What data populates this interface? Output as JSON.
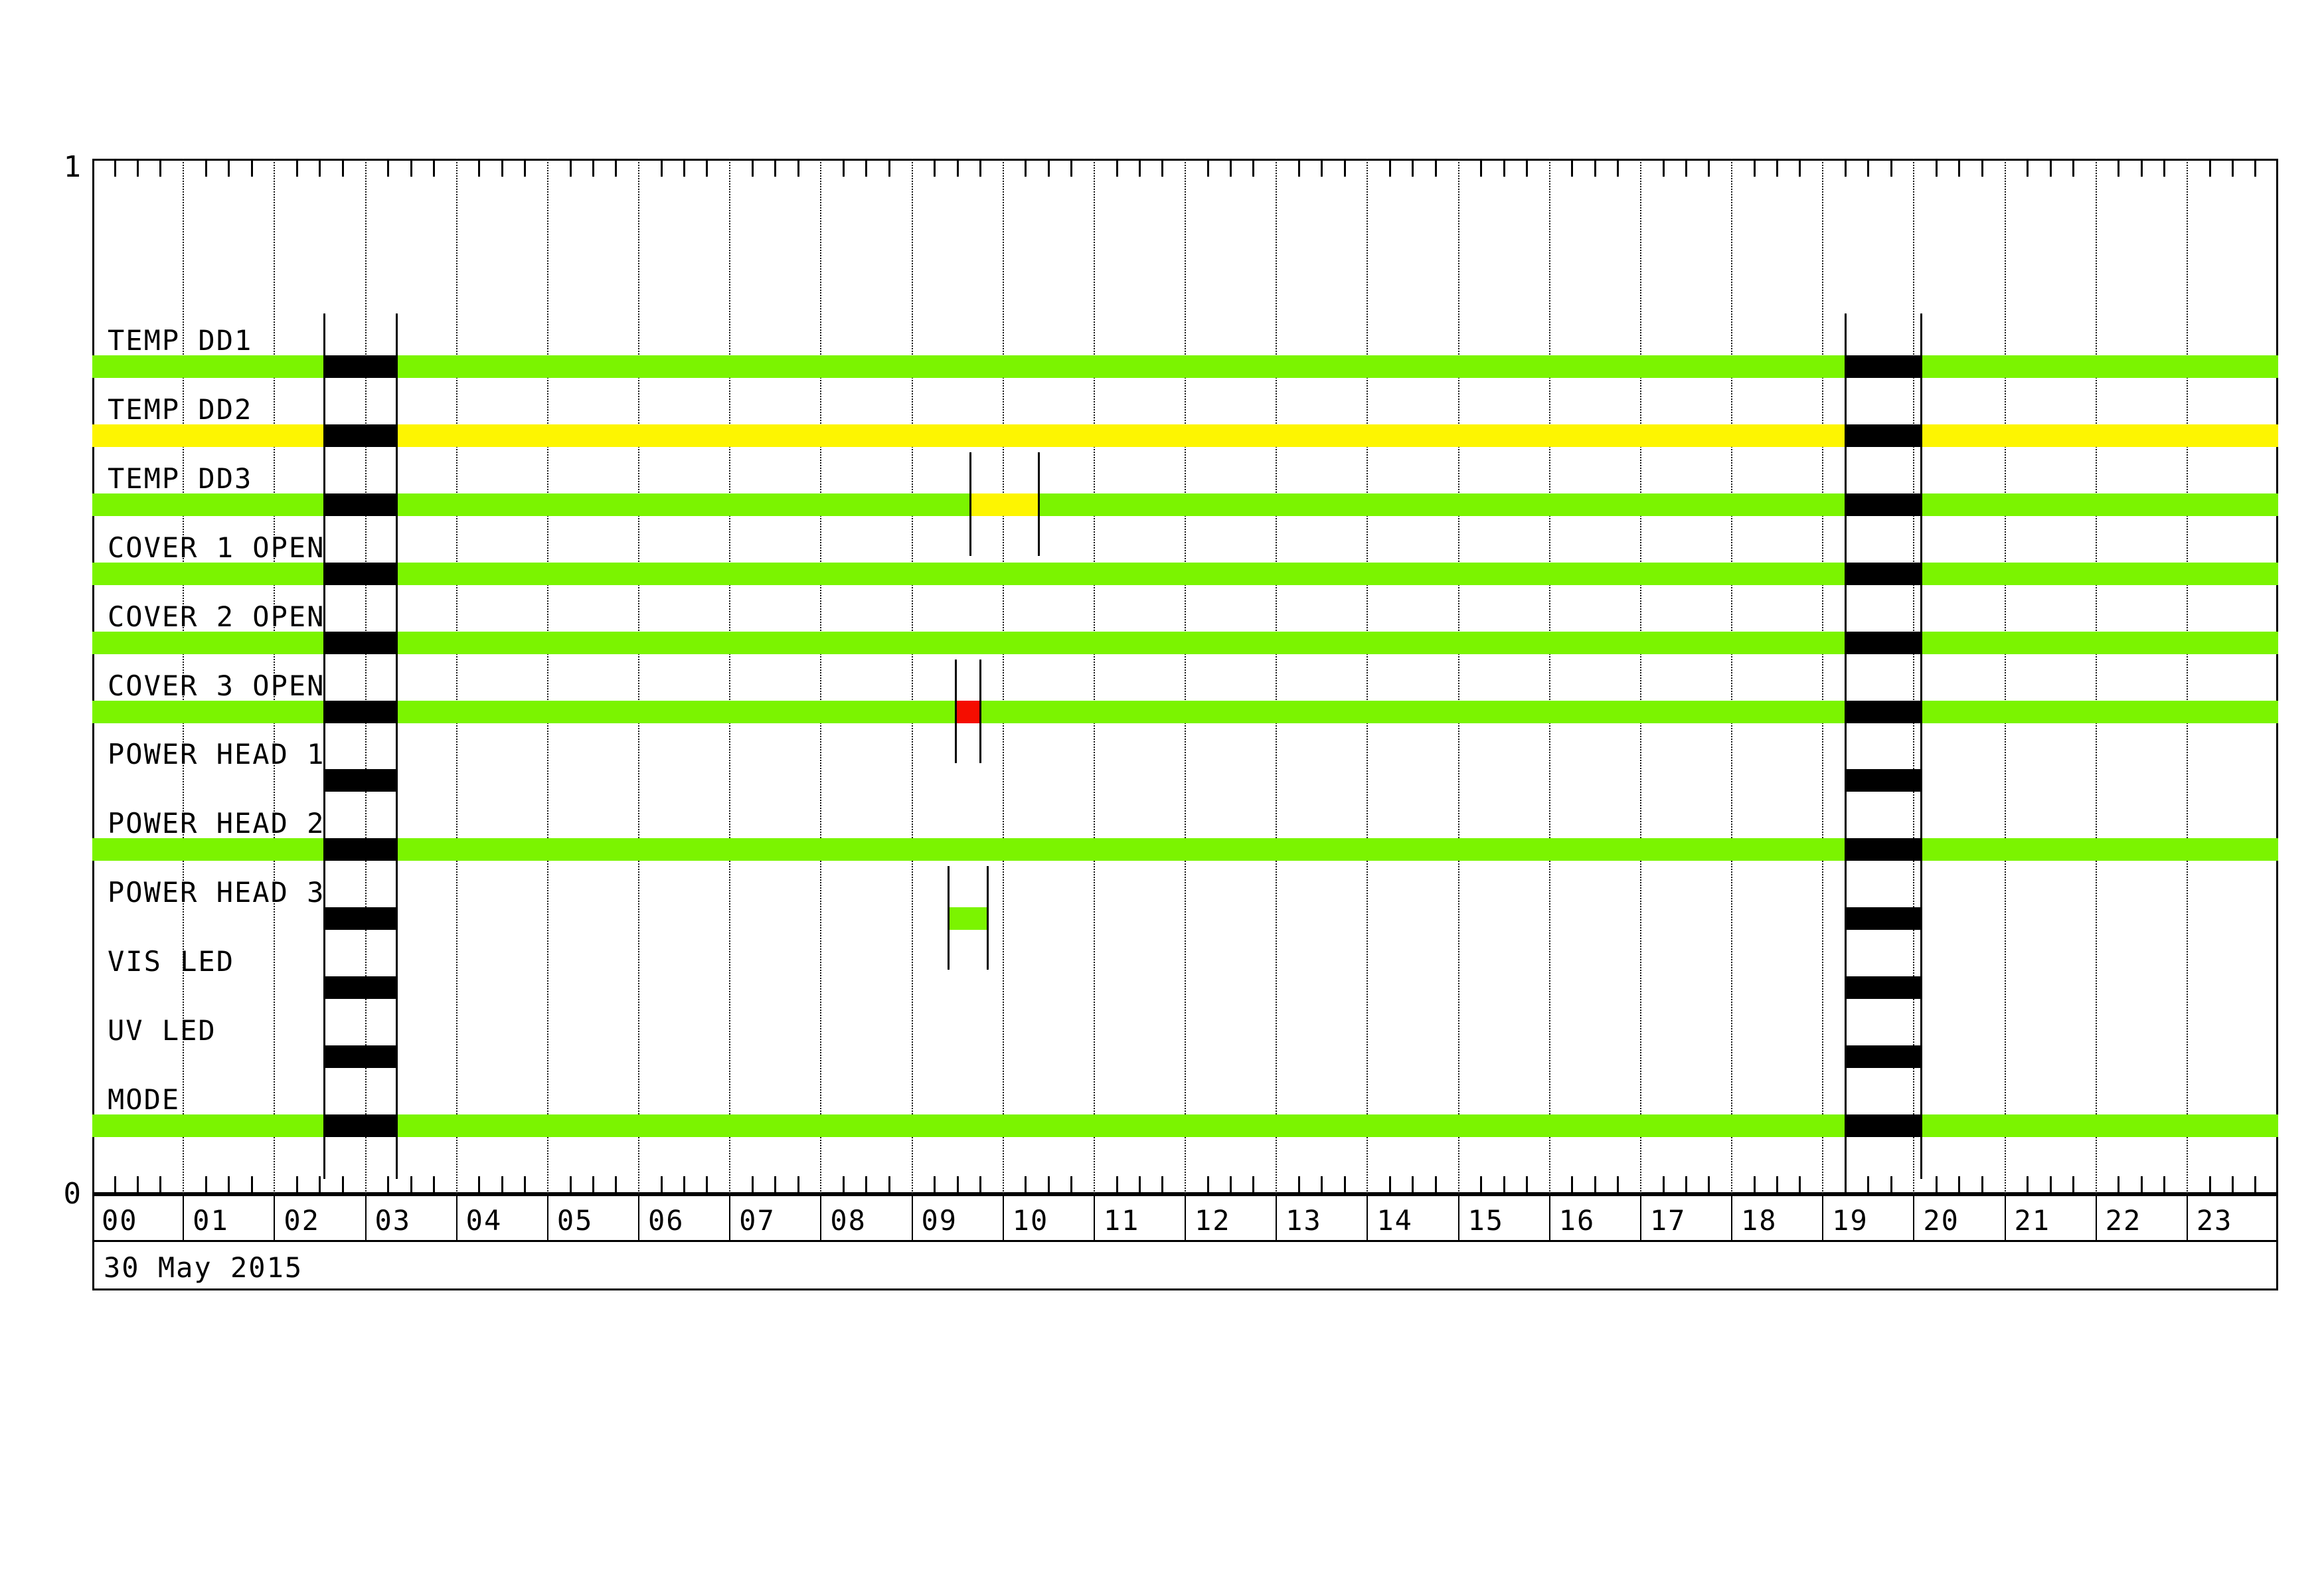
{
  "title": "instrument-housekeeping-timeline",
  "date_footer": "30 May 2015",
  "y_axis": {
    "top_label": "1",
    "bottom_label": "0"
  },
  "x_axis": {
    "hours": [
      "00",
      "01",
      "02",
      "03",
      "04",
      "05",
      "06",
      "07",
      "08",
      "09",
      "10",
      "11",
      "12",
      "13",
      "14",
      "15",
      "16",
      "17",
      "18",
      "19",
      "20",
      "21",
      "22",
      "23"
    ],
    "range_hours": [
      0,
      24
    ],
    "minor_tick_minutes": 15,
    "gridlines": "dotted-at-each-hour"
  },
  "chart_data": {
    "type": "timeline",
    "title": "",
    "xlabel": "",
    "ylabel": "",
    "date": "30 May 2015",
    "x_range_hours": [
      0,
      24
    ],
    "legend": "none",
    "grid": "vertical-dotted-hourly",
    "colors": {
      "green": "#7bf400",
      "yellow": "#fdf501",
      "red": "#f50d00",
      "black": "#000000",
      "none": ""
    },
    "event_columns": [
      {
        "name": "outage-1",
        "color": "black",
        "start": 2.55,
        "end": 3.34,
        "applies_to": "all_rows"
      },
      {
        "name": "outage-2",
        "color": "black",
        "start": 19.25,
        "end": 20.08,
        "applies_to": "all_rows"
      }
    ],
    "rows": [
      {
        "label": "TEMP DD1",
        "base": "green",
        "segments": []
      },
      {
        "label": "TEMP DD2",
        "base": "yellow",
        "segments": []
      },
      {
        "label": "TEMP DD3",
        "base": "green",
        "segments": [
          {
            "color": "yellow",
            "start": 9.64,
            "end": 10.39,
            "marked": true
          }
        ]
      },
      {
        "label": "COVER 1 OPEN",
        "base": "green",
        "segments": []
      },
      {
        "label": "COVER 2 OPEN",
        "base": "green",
        "segments": []
      },
      {
        "label": "COVER 3 OPEN",
        "base": "green",
        "segments": [
          {
            "color": "red",
            "start": 9.48,
            "end": 9.75,
            "marked": true
          }
        ]
      },
      {
        "label": "POWER HEAD 1",
        "base": "none",
        "segments": []
      },
      {
        "label": "POWER HEAD 2",
        "base": "green",
        "segments": []
      },
      {
        "label": "POWER HEAD 3",
        "base": "none",
        "segments": [
          {
            "color": "green",
            "start": 9.4,
            "end": 9.83,
            "marked": true
          }
        ]
      },
      {
        "label": "VIS LED",
        "base": "none",
        "segments": []
      },
      {
        "label": "UV LED",
        "base": "none",
        "segments": []
      },
      {
        "label": "MODE",
        "base": "green",
        "segments": []
      }
    ]
  }
}
